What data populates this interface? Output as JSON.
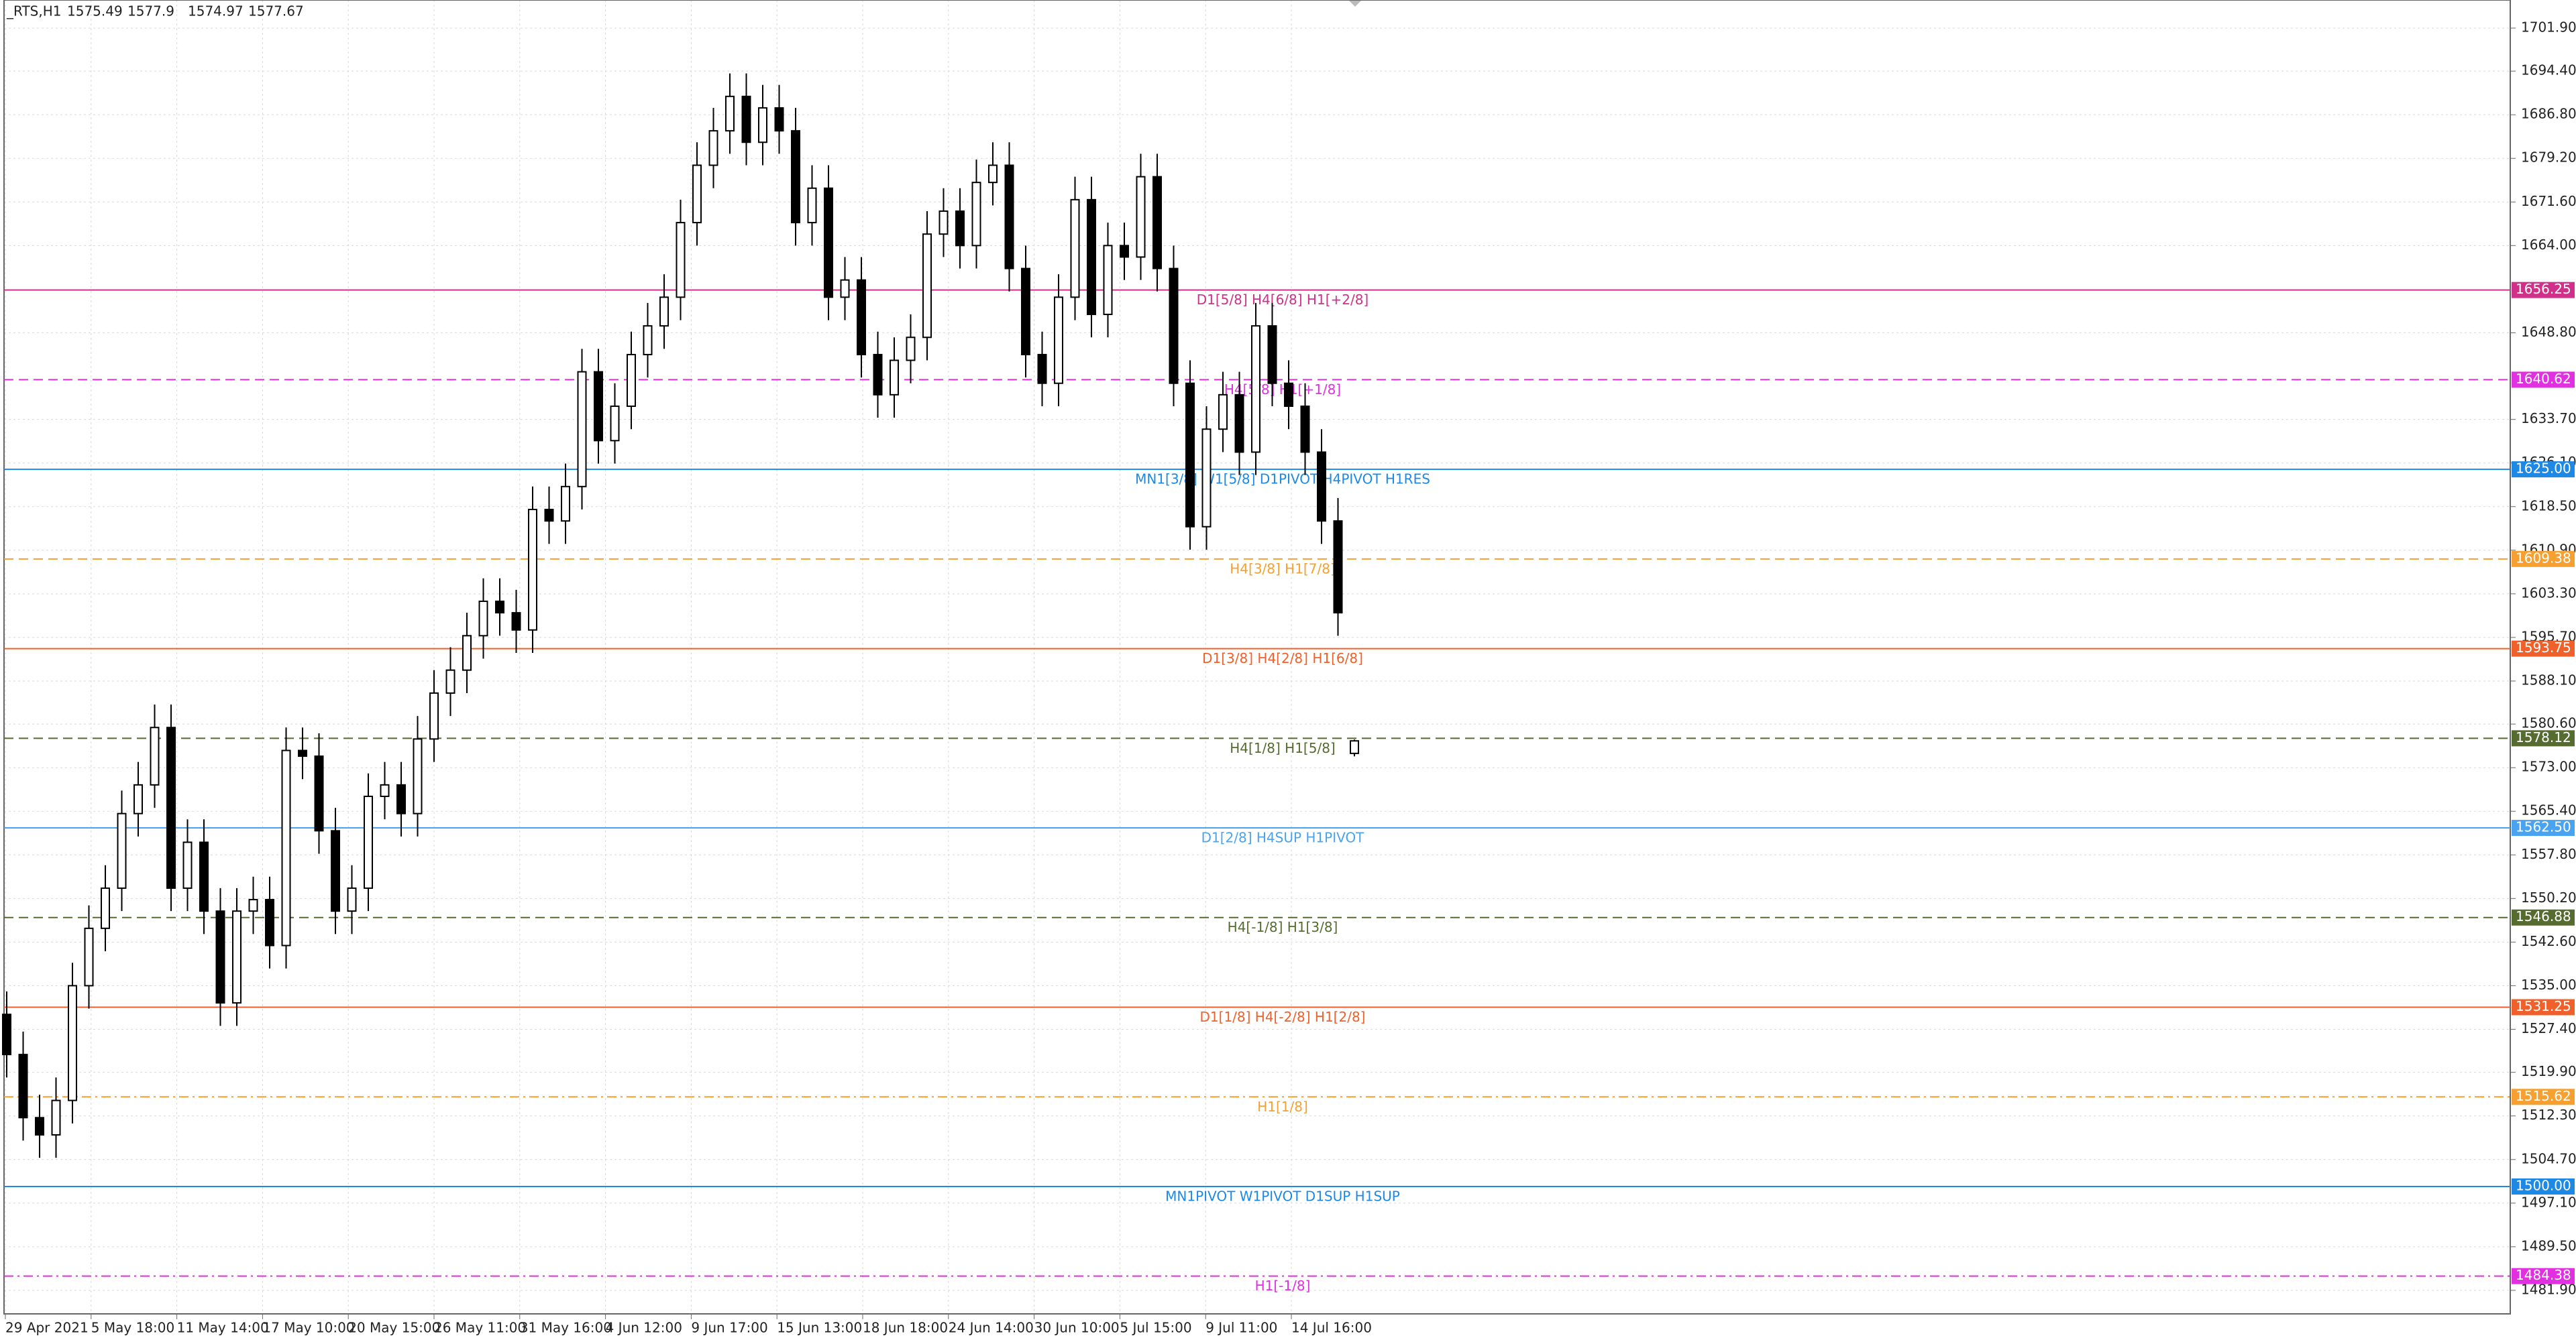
{
  "chart_data": {
    "type": "candlestick",
    "symbol": "_RTS,H1",
    "open": [
      1530,
      1523,
      1512,
      1509,
      1515,
      1535,
      1545,
      1552,
      1565,
      1570,
      1580,
      1552,
      1560,
      1548,
      1532,
      1548,
      1550,
      1542,
      1576,
      1575,
      1562,
      1548,
      1552,
      1568,
      1570,
      1565,
      1578,
      1586,
      1590,
      1596,
      1602,
      1600,
      1597,
      1618,
      1616,
      1622,
      1642,
      1630,
      1636,
      1645,
      1650,
      1655,
      1668,
      1678,
      1684,
      1690,
      1682,
      1688,
      1684,
      1668,
      1674,
      1655,
      1658,
      1645,
      1638,
      1644,
      1648,
      1666,
      1670,
      1664,
      1675,
      1678,
      1660,
      1645,
      1640,
      1655,
      1672,
      1652,
      1664,
      1662,
      1676,
      1660,
      1640,
      1615,
      1632,
      1638,
      1628,
      1650,
      1640,
      1636,
      1628,
      1616,
      1575.49
    ],
    "high": [
      1534,
      1527,
      1516,
      1519,
      1539,
      1549,
      1556,
      1569,
      1574,
      1584,
      1584,
      1564,
      1564,
      1552,
      1552,
      1554,
      1554,
      1580,
      1580,
      1579,
      1566,
      1556,
      1572,
      1574,
      1574,
      1582,
      1590,
      1594,
      1600,
      1606,
      1606,
      1604,
      1622,
      1622,
      1626,
      1646,
      1646,
      1640,
      1649,
      1654,
      1659,
      1672,
      1682,
      1688,
      1694,
      1694,
      1692,
      1692,
      1688,
      1678,
      1678,
      1662,
      1662,
      1649,
      1648,
      1652,
      1670,
      1674,
      1674,
      1679,
      1682,
      1682,
      1664,
      1649,
      1659,
      1676,
      1676,
      1668,
      1668,
      1680,
      1680,
      1664,
      1644,
      1636,
      1642,
      1642,
      1654,
      1654,
      1644,
      1640,
      1632,
      1620,
      1577.9
    ],
    "low": [
      1519,
      1508,
      1505,
      1505,
      1511,
      1531,
      1541,
      1548,
      1561,
      1566,
      1548,
      1548,
      1544,
      1528,
      1528,
      1544,
      1538,
      1538,
      1571,
      1558,
      1544,
      1544,
      1548,
      1564,
      1561,
      1561,
      1574,
      1582,
      1586,
      1592,
      1596,
      1593,
      1593,
      1612,
      1612,
      1618,
      1626,
      1626,
      1632,
      1641,
      1646,
      1651,
      1664,
      1674,
      1680,
      1678,
      1678,
      1680,
      1664,
      1664,
      1651,
      1651,
      1641,
      1634,
      1634,
      1640,
      1644,
      1662,
      1660,
      1660,
      1671,
      1656,
      1641,
      1636,
      1636,
      1651,
      1648,
      1648,
      1658,
      1658,
      1656,
      1636,
      1611,
      1611,
      1628,
      1624,
      1624,
      1636,
      1632,
      1624,
      1612,
      1596,
      1574.97
    ],
    "close": [
      1523,
      1512,
      1509,
      1515,
      1535,
      1545,
      1552,
      1565,
      1570,
      1580,
      1552,
      1560,
      1548,
      1532,
      1548,
      1550,
      1542,
      1576,
      1575,
      1562,
      1548,
      1552,
      1568,
      1570,
      1565,
      1578,
      1586,
      1590,
      1596,
      1602,
      1600,
      1597,
      1618,
      1616,
      1622,
      1642,
      1630,
      1636,
      1645,
      1650,
      1655,
      1668,
      1678,
      1684,
      1690,
      1682,
      1688,
      1684,
      1668,
      1674,
      1655,
      1658,
      1645,
      1638,
      1644,
      1648,
      1666,
      1670,
      1664,
      1675,
      1678,
      1660,
      1645,
      1640,
      1655,
      1672,
      1652,
      1664,
      1662,
      1676,
      1660,
      1640,
      1615,
      1632,
      1638,
      1628,
      1650,
      1640,
      1636,
      1628,
      1616,
      1600,
      1577.67
    ],
    "categories": [
      "29 Apr 2021",
      "5 May 18:00",
      "11 May 14:00",
      "17 May 10:00",
      "20 May 15:00",
      "26 May 11:00",
      "31 May 16:00",
      "4 Jun 12:00",
      "9 Jun 17:00",
      "15 Jun 13:00",
      "18 Jun 18:00",
      "24 Jun 14:00",
      "30 Jun 10:00",
      "5 Jul 15:00",
      "9 Jul 11:00",
      "14 Jul 16:00"
    ],
    "ylim": [
      1477.8,
      1706.8
    ],
    "yticks": [
      {
        "value": 1701.9,
        "label": "1701.90"
      },
      {
        "value": 1694.4,
        "label": "1694.40"
      },
      {
        "value": 1686.8,
        "label": "1686.80"
      },
      {
        "value": 1679.2,
        "label": "1679.20"
      },
      {
        "value": 1671.6,
        "label": "1671.60"
      },
      {
        "value": 1664,
        "label": "1664.00"
      },
      {
        "value": 1648.8,
        "label": "1648.80"
      },
      {
        "value": 1633.7,
        "label": "1633.70"
      },
      {
        "value": 1626.1,
        "label": "1626.10"
      },
      {
        "value": 1618.5,
        "label": "1618.50"
      },
      {
        "value": 1610.9,
        "label": "1610.90"
      },
      {
        "value": 1603.3,
        "label": "1603.30"
      },
      {
        "value": 1595.7,
        "label": "1595.70"
      },
      {
        "value": 1588.1,
        "label": "1588.10"
      },
      {
        "value": 1580.6,
        "label": "1580.60"
      },
      {
        "value": 1573,
        "label": "1573.00"
      },
      {
        "value": 1565.4,
        "label": "1565.40"
      },
      {
        "value": 1557.8,
        "label": "1557.80"
      },
      {
        "value": 1550.2,
        "label": "1550.20"
      },
      {
        "value": 1542.6,
        "label": "1542.60"
      },
      {
        "value": 1535,
        "label": "1535.00"
      },
      {
        "value": 1527.4,
        "label": "1527.40"
      },
      {
        "value": 1519.9,
        "label": "1519.90"
      },
      {
        "value": 1512.3,
        "label": "1512.30"
      },
      {
        "value": 1504.7,
        "label": "1504.70"
      },
      {
        "value": 1497.1,
        "label": "1497.10"
      },
      {
        "value": 1489.5,
        "label": "1489.50"
      },
      {
        "value": 1481.9,
        "label": "1481.90"
      }
    ],
    "grid": true,
    "levels": [
      {
        "text": "D1[5/8] H4[6/8] H1[+2/8]",
        "value": 1656.25,
        "value_label": "1656.25",
        "color": "#d0308a",
        "dash": "solid"
      },
      {
        "text": "H4[5/8] H1[+1/8]",
        "value": 1640.62,
        "value_label": "1640.62",
        "color": "#e030e0",
        "dash": "dash"
      },
      {
        "text": "MN1[3/8] W1[5/8] D1PIVOT H4PIVOT H1RES",
        "value": 1625,
        "value_label": "1625.00",
        "color": "#1e88e5",
        "dash": "solid"
      },
      {
        "text": "H4[3/8] H1[7/8]",
        "value": 1609.38,
        "value_label": "1609.38",
        "color": "#f5a030",
        "dash": "dash"
      },
      {
        "text": "D1[3/8] H4[2/8] H1[6/8]",
        "value": 1593.75,
        "value_label": "1593.75",
        "color": "#f0602a",
        "dash": "solid"
      },
      {
        "text": "H4[1/8] H1[5/8]",
        "value": 1578.12,
        "value_label": "1578.12",
        "color": "#556b2f",
        "dash": "dash"
      },
      {
        "text": "D1[2/8] H4SUP H1PIVOT",
        "value": 1562.5,
        "value_label": "1562.50",
        "color": "#4aa3f0",
        "dash": "solid"
      },
      {
        "text": "H4[-1/8] H1[3/8]",
        "value": 1546.88,
        "value_label": "1546.88",
        "color": "#556b2f",
        "dash": "dash"
      },
      {
        "text": "D1[1/8] H4[-2/8] H1[2/8]",
        "value": 1531.25,
        "value_label": "1531.25",
        "color": "#f0602a",
        "dash": "solid"
      },
      {
        "text": "H1[1/8]",
        "value": 1515.62,
        "value_label": "1515.62",
        "color": "#f5a030",
        "dash": "dashdot"
      },
      {
        "text": "MN1PIVOT W1PIVOT D1SUP H1SUP",
        "value": 1500,
        "value_label": "1500.00",
        "color": "#1e88e5",
        "dash": "solid"
      },
      {
        "text": "H1[-1/8]",
        "value": 1484.38,
        "value_label": "1484.38",
        "color": "#e030e0",
        "dash": "dashdot"
      }
    ]
  }
}
